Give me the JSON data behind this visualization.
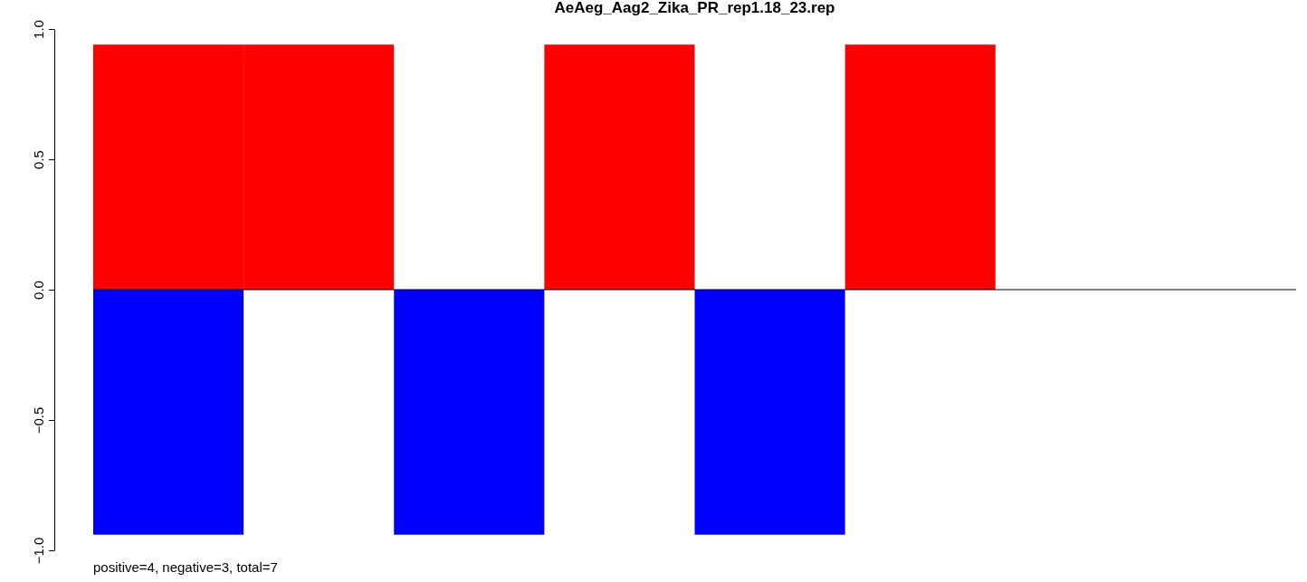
{
  "chart_data": {
    "type": "bar",
    "title": "AeAeg_Aag2_Zika_PR_rep1.18_23.rep",
    "categories": [
      null,
      null,
      null,
      null,
      null,
      null,
      null,
      null
    ],
    "series": [
      {
        "color": "#ff0000",
        "values": [
          0.94,
          0.94,
          null,
          0.94,
          null,
          0.94,
          null,
          null
        ]
      },
      {
        "color": "#0000ff",
        "values": [
          -0.94,
          null,
          -0.94,
          null,
          -0.94,
          null,
          null,
          null
        ]
      }
    ],
    "ylim": [
      -1,
      1
    ],
    "yticks": [
      {
        "value": -1,
        "label": "−1.0"
      },
      {
        "value": -0.5,
        "label": "−0.5"
      },
      {
        "value": 0,
        "label": "0.0"
      },
      {
        "value": 0.5,
        "label": "0.5"
      },
      {
        "value": 1,
        "label": "1.0"
      }
    ],
    "tick_labels": "y",
    "ref_lines": [
      {
        "axis": "y",
        "value": 0,
        "color": "#000000"
      }
    ],
    "annotations": [
      "positive=4, negative=3, total=7"
    ]
  }
}
